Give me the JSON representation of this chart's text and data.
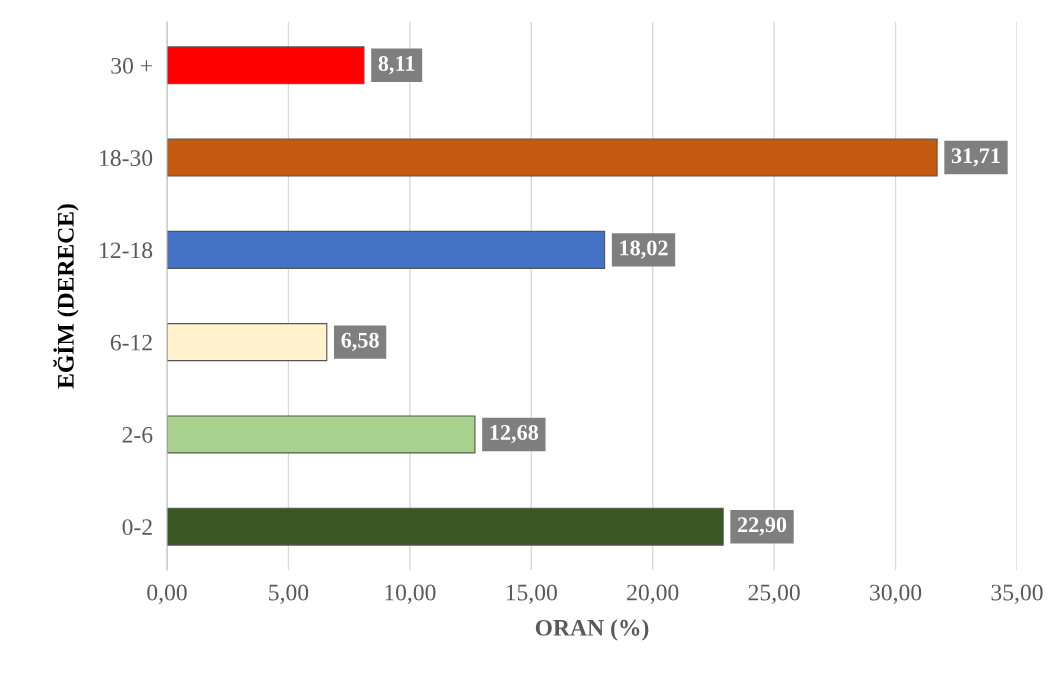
{
  "chart_data": {
    "type": "bar",
    "orientation": "horizontal",
    "xlabel": "ORAN (%)",
    "ylabel": "EĞİM (DERECE)",
    "categories": [
      "30 +",
      "18-30",
      "12-18",
      "6-12",
      "2-6",
      "0-2"
    ],
    "values": [
      8.11,
      31.71,
      18.02,
      6.58,
      12.68,
      22.9
    ],
    "colors": [
      "#ff0000",
      "#c55a11",
      "#4472c4",
      "#fff2cc",
      "#a9d18e",
      "#385723"
    ],
    "value_labels": [
      "8,11",
      "31,71",
      "18,02",
      "6,58",
      "12,68",
      "22,90"
    ],
    "xlim": [
      0,
      35
    ],
    "xticks": [
      {
        "value": 0,
        "label": "0,00"
      },
      {
        "value": 5,
        "label": "5,00"
      },
      {
        "value": 10,
        "label": "10,00"
      },
      {
        "value": 15,
        "label": "15,00"
      },
      {
        "value": 20,
        "label": "20,00"
      },
      {
        "value": 25,
        "label": "25,00"
      },
      {
        "value": 30,
        "label": "30,00"
      },
      {
        "value": 35,
        "label": "35,00"
      }
    ],
    "grid": "x"
  }
}
